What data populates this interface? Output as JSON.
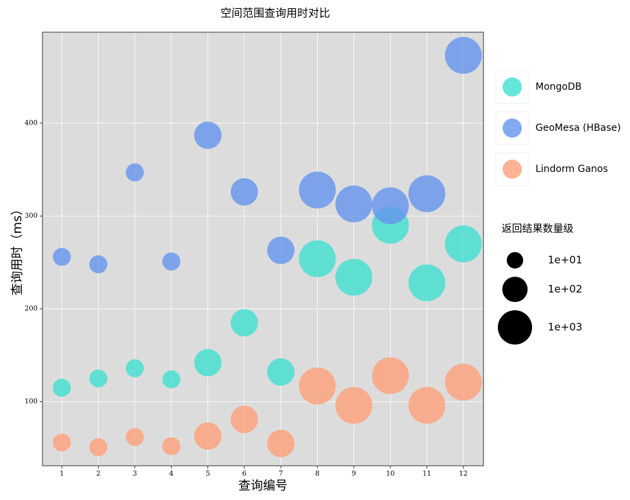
{
  "chart_data": {
    "type": "scatter",
    "title": "空间范围查询用时对比",
    "x_label": "查询编号",
    "y_label": "查询用时（ms）",
    "x": [
      1,
      2,
      3,
      4,
      5,
      6,
      7,
      8,
      9,
      10,
      11,
      12
    ],
    "series": [
      {
        "name": "MongoDB",
        "color": "#40e0d0",
        "values": [
          115,
          125,
          136,
          124,
          142,
          185,
          132,
          254,
          234,
          290,
          228,
          270
        ],
        "sizes": [
          15,
          15,
          15,
          15,
          170,
          170,
          170,
          2000,
          2000,
          2000,
          2000,
          2000
        ]
      },
      {
        "name": "GeoMesa (HBase)",
        "color": "#6495ed",
        "values": [
          256,
          248,
          347,
          251,
          387,
          326,
          263,
          328,
          313,
          311,
          324,
          473
        ],
        "sizes": [
          15,
          15,
          15,
          15,
          170,
          170,
          170,
          2000,
          2000,
          2000,
          2000,
          2000
        ]
      },
      {
        "name": "Lindorm Ganos",
        "color": "#ffa07a",
        "values": [
          56,
          51,
          62,
          52,
          63,
          81,
          55,
          117,
          96,
          128,
          96,
          121
        ],
        "sizes": [
          15,
          15,
          15,
          15,
          170,
          170,
          170,
          2000,
          2000,
          2000,
          2000,
          2000
        ]
      }
    ],
    "alpha": 0.8,
    "xlim": [
      0.47,
      12.55
    ],
    "ylim": [
      31,
      498
    ],
    "xticks": [
      1,
      2,
      3,
      4,
      5,
      6,
      7,
      8,
      9,
      10,
      11,
      12
    ],
    "yticks": [
      100,
      200,
      300,
      400
    ],
    "grid": true,
    "size_legend": {
      "title": "返回结果数量级",
      "items": [
        {
          "value": 10,
          "label": "1e+01"
        },
        {
          "value": 100,
          "label": "1e+02"
        },
        {
          "value": 1000,
          "label": "1e+03"
        }
      ]
    }
  }
}
